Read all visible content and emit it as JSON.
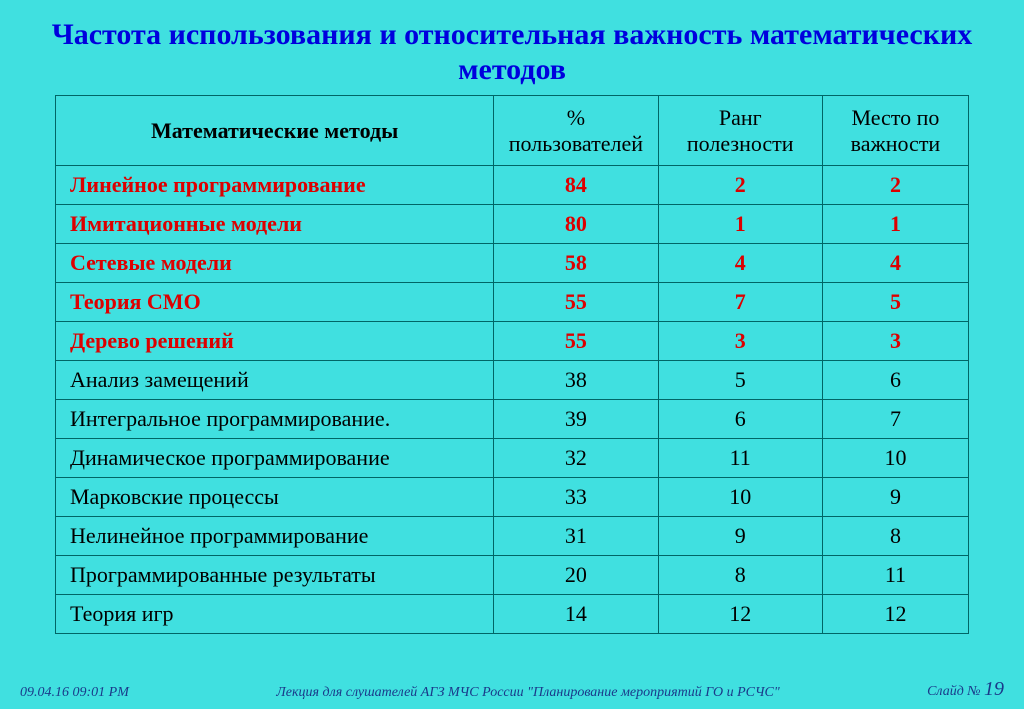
{
  "title": "Частота использования и относительная важность математических методов",
  "table": {
    "columns": [
      "Математические методы",
      "% пользователей",
      "Ранг полезности",
      "Место по важности"
    ],
    "rows": [
      {
        "name": "Линейное программирование",
        "pct": "84",
        "rank": "2",
        "place": "2",
        "hi": true
      },
      {
        "name": "Имитационные модели",
        "pct": "80",
        "rank": "1",
        "place": "1",
        "hi": true
      },
      {
        "name": "Сетевые модели",
        "pct": "58",
        "rank": "4",
        "place": "4",
        "hi": true
      },
      {
        "name": "Теория СМО",
        "pct": "55",
        "rank": "7",
        "place": "5",
        "hi": true
      },
      {
        "name": "Дерево решений",
        "pct": "55",
        "rank": "3",
        "place": "3",
        "hi": true
      },
      {
        "name": "Анализ замещений",
        "pct": "38",
        "rank": "5",
        "place": "6",
        "hi": false
      },
      {
        "name": "Интегральное программирование.",
        "pct": "39",
        "rank": "6",
        "place": "7",
        "hi": false
      },
      {
        "name": "Динамическое программирование",
        "pct": "32",
        "rank": "11",
        "place": "10",
        "hi": false
      },
      {
        "name": "Марковские процессы",
        "pct": "33",
        "rank": "10",
        "place": "9",
        "hi": false
      },
      {
        "name": "Нелинейное программирование",
        "pct": "31",
        "rank": "9",
        "place": "8",
        "hi": false
      },
      {
        "name": "Программированные результаты",
        "pct": "20",
        "rank": "8",
        "place": "11",
        "hi": false
      },
      {
        "name": "Теория игр",
        "pct": "14",
        "rank": "12",
        "place": "12",
        "hi": false
      }
    ]
  },
  "footer": {
    "date": "09.04.16 09:01 PM",
    "lecture": "Лекция для слушателей АГЗ МЧС России \"Планирование мероприятий ГО и РСЧС\"",
    "slide_label": "Слайд №",
    "slide_num": "19"
  },
  "style": {
    "background_color": "#40e0e0",
    "title_color": "#0000dd",
    "highlight_color": "#dd0000",
    "border_color": "#006666",
    "footer_color": "#1a3a8a",
    "title_fontsize": 30,
    "cell_fontsize": 22,
    "footer_fontsize": 14
  }
}
